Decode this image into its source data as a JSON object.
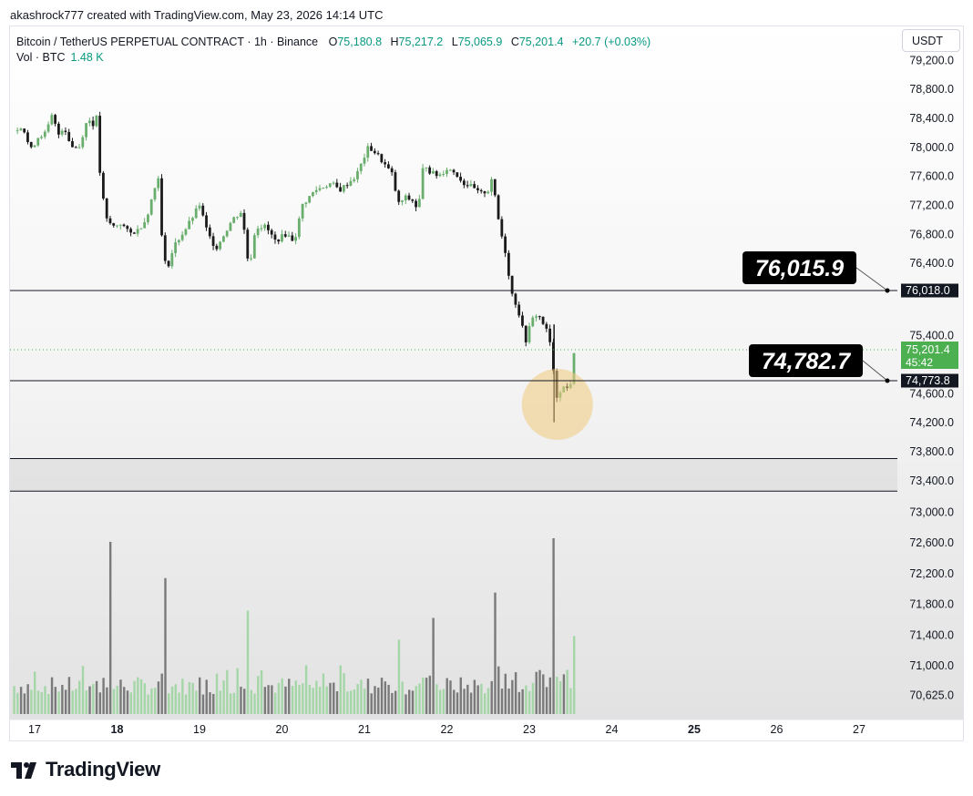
{
  "caption": "akashrock777 created with TradingView.com, May 23, 2026 14:14 UTC",
  "legend": {
    "symbol": "Bitcoin / TetherUS PERPETUAL CONTRACT · 1h · Binance",
    "o_label": "O",
    "o": "75,180.8",
    "h_label": "H",
    "h": "75,217.2",
    "l_label": "L",
    "l": "75,065.9",
    "c_label": "C",
    "c": "75,201.4",
    "change": "+20.7 (+0.03%)",
    "vol_label": "Vol · BTC",
    "vol_value": "1.48 K"
  },
  "currency": "USDT",
  "brand": "TradingView",
  "colors": {
    "up": "#6aae6e",
    "down": "#1a1a1a",
    "accent": "#089981",
    "line": "#131722",
    "highlight": "#f1cb7e"
  },
  "chart_data": {
    "type": "candlestick",
    "title": "Bitcoin / TetherUS PERPETUAL CONTRACT · 1h · Binance",
    "interval": "1h",
    "y_ticks": [
      "79,200.0",
      "78,800.0",
      "78,400.0",
      "78,000.0",
      "77,600.0",
      "77,200.0",
      "76,800.0",
      "76,400.0",
      "75,400.0",
      "74,600.0",
      "74,200.0",
      "73,800.0",
      "73,400.0",
      "73,000.0",
      "72,600.0",
      "72,200.0",
      "71,800.0",
      "71,400.0",
      "71,000.0",
      "70,625.0"
    ],
    "x_ticks": [
      {
        "label": "17",
        "bold": false
      },
      {
        "label": "18",
        "bold": true
      },
      {
        "label": "19",
        "bold": false
      },
      {
        "label": "20",
        "bold": false
      },
      {
        "label": "21",
        "bold": false
      },
      {
        "label": "22",
        "bold": false
      },
      {
        "label": "23",
        "bold": false
      },
      {
        "label": "24",
        "bold": false
      },
      {
        "label": "25",
        "bold": true
      },
      {
        "label": "26",
        "bold": false
      },
      {
        "label": "27",
        "bold": false
      }
    ],
    "axis_labels": {
      "level_upper": "76,018.0",
      "level_lower": "74,773.8",
      "last_price": "75,201.4",
      "countdown": "45:42"
    },
    "annotations": {
      "upper_callout": "76,015.9",
      "lower_callout": "74,782.7"
    },
    "horizontal_levels": [
      76018.0,
      74773.8
    ],
    "zone": [
      73700,
      73250
    ],
    "close_path": [
      [
        16.75,
        78220
      ],
      [
        16.85,
        78300
      ],
      [
        16.95,
        77950
      ],
      [
        17.05,
        78150
      ],
      [
        17.15,
        78200
      ],
      [
        17.2,
        78450
      ],
      [
        17.3,
        78150
      ],
      [
        17.35,
        78300
      ],
      [
        17.45,
        78000
      ],
      [
        17.55,
        78000
      ],
      [
        17.6,
        78250
      ],
      [
        17.65,
        78400
      ],
      [
        17.7,
        78300
      ],
      [
        17.75,
        78400
      ],
      [
        17.8,
        77500
      ],
      [
        17.87,
        77000
      ],
      [
        17.95,
        76900
      ],
      [
        18.05,
        76950
      ],
      [
        18.15,
        76800
      ],
      [
        18.25,
        76850
      ],
      [
        18.35,
        77000
      ],
      [
        18.5,
        77600
      ],
      [
        18.55,
        76600
      ],
      [
        18.6,
        76300
      ],
      [
        18.7,
        76650
      ],
      [
        18.85,
        76900
      ],
      [
        19.0,
        77200
      ],
      [
        19.1,
        76800
      ],
      [
        19.2,
        76600
      ],
      [
        19.3,
        76800
      ],
      [
        19.4,
        77000
      ],
      [
        19.5,
        77100
      ],
      [
        19.55,
        76800
      ],
      [
        19.6,
        76300
      ],
      [
        19.68,
        76900
      ],
      [
        19.8,
        76900
      ],
      [
        19.92,
        76700
      ],
      [
        20.05,
        76800
      ],
      [
        20.15,
        76700
      ],
      [
        20.25,
        77200
      ],
      [
        20.4,
        77400
      ],
      [
        20.5,
        77450
      ],
      [
        20.6,
        77500
      ],
      [
        20.7,
        77400
      ],
      [
        20.8,
        77500
      ],
      [
        20.9,
        77600
      ],
      [
        21.05,
        78000
      ],
      [
        21.15,
        77900
      ],
      [
        21.25,
        77750
      ],
      [
        21.35,
        77600
      ],
      [
        21.4,
        77200
      ],
      [
        21.5,
        77300
      ],
      [
        21.6,
        77250
      ],
      [
        21.65,
        77100
      ],
      [
        21.72,
        77800
      ],
      [
        21.8,
        77650
      ],
      [
        21.9,
        77600
      ],
      [
        22.0,
        77700
      ],
      [
        22.1,
        77650
      ],
      [
        22.2,
        77500
      ],
      [
        22.3,
        77450
      ],
      [
        22.4,
        77350
      ],
      [
        22.5,
        77400
      ],
      [
        22.55,
        77600
      ],
      [
        22.6,
        77150
      ],
      [
        22.65,
        76850
      ],
      [
        22.72,
        76500
      ],
      [
        22.78,
        76000
      ],
      [
        22.85,
        75800
      ],
      [
        22.9,
        75600
      ],
      [
        22.95,
        75300
      ],
      [
        23.0,
        75500
      ],
      [
        23.05,
        75650
      ],
      [
        23.1,
        75700
      ],
      [
        23.15,
        75600
      ],
      [
        23.2,
        75500
      ],
      [
        23.25,
        75300
      ],
      [
        23.3,
        74800
      ],
      [
        23.33,
        74550
      ],
      [
        23.4,
        74700
      ],
      [
        23.45,
        74650
      ],
      [
        23.5,
        74750
      ],
      [
        23.55,
        75200
      ]
    ],
    "volume_peaks": [
      [
        17.93,
        72550
      ],
      [
        18.6,
        72050
      ],
      [
        19.58,
        71600
      ],
      [
        21.42,
        71200
      ],
      [
        21.82,
        71500
      ],
      [
        22.58,
        71850
      ],
      [
        23.28,
        72600
      ],
      [
        23.55,
        71250
      ]
    ]
  }
}
